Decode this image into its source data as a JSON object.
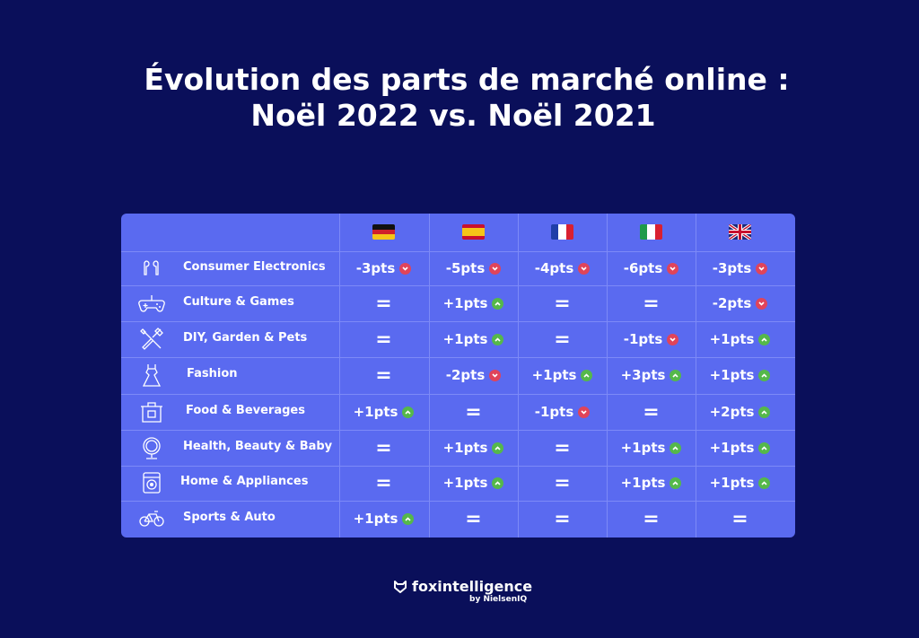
{
  "title": {
    "line1": "Évolution des parts de marché online :",
    "line2": "Noël 2022 vs. Noël 2021"
  },
  "colors": {
    "background": "#0a0f5a",
    "table": "#5a6af0",
    "up": "#55b84a",
    "down": "#e0445a"
  },
  "chart_data": {
    "type": "table",
    "columns": [
      {
        "country": "Germany",
        "flag": "de-flag"
      },
      {
        "country": "Spain",
        "flag": "es-flag"
      },
      {
        "country": "France",
        "flag": "fr-flag"
      },
      {
        "country": "Italy",
        "flag": "it-flag"
      },
      {
        "country": "United Kingdom",
        "flag": "uk-flag"
      }
    ],
    "rows": [
      {
        "category": "Consumer Electronics",
        "icon": "earbuds-icon",
        "cells": [
          {
            "text": "-3pts",
            "trend": "down"
          },
          {
            "text": "-5pts",
            "trend": "down"
          },
          {
            "text": "-4pts",
            "trend": "down"
          },
          {
            "text": "-6pts",
            "trend": "down"
          },
          {
            "text": "-3pts",
            "trend": "down"
          }
        ]
      },
      {
        "category": "Culture & Games",
        "icon": "gamepad-icon",
        "cells": [
          {
            "text": "=",
            "trend": "equal"
          },
          {
            "text": "+1pts",
            "trend": "up"
          },
          {
            "text": "=",
            "trend": "equal"
          },
          {
            "text": "=",
            "trend": "equal"
          },
          {
            "text": "-2pts",
            "trend": "down"
          }
        ]
      },
      {
        "category": "DIY, Garden & Pets",
        "icon": "tools-icon",
        "cells": [
          {
            "text": "=",
            "trend": "equal"
          },
          {
            "text": "+1pts",
            "trend": "up"
          },
          {
            "text": "=",
            "trend": "equal"
          },
          {
            "text": "-1pts",
            "trend": "down"
          },
          {
            "text": "+1pts",
            "trend": "up"
          }
        ]
      },
      {
        "category": "Fashion",
        "icon": "dress-icon",
        "cells": [
          {
            "text": "=",
            "trend": "equal"
          },
          {
            "text": "-2pts",
            "trend": "down"
          },
          {
            "text": "+1pts",
            "trend": "up"
          },
          {
            "text": "+3pts",
            "trend": "up"
          },
          {
            "text": "+1pts",
            "trend": "up"
          }
        ]
      },
      {
        "category": "Food & Beverages",
        "icon": "pot-icon",
        "cells": [
          {
            "text": "+1pts",
            "trend": "up"
          },
          {
            "text": "=",
            "trend": "equal"
          },
          {
            "text": "-1pts",
            "trend": "down"
          },
          {
            "text": "=",
            "trend": "equal"
          },
          {
            "text": "+2pts",
            "trend": "up"
          }
        ]
      },
      {
        "category": "Health, Beauty & Baby",
        "icon": "mirror-icon",
        "cells": [
          {
            "text": "=",
            "trend": "equal"
          },
          {
            "text": "+1pts",
            "trend": "up"
          },
          {
            "text": "=",
            "trend": "equal"
          },
          {
            "text": "+1pts",
            "trend": "up"
          },
          {
            "text": "+1pts",
            "trend": "up"
          }
        ]
      },
      {
        "category": "Home & Appliances",
        "icon": "washing-machine-icon",
        "cells": [
          {
            "text": "=",
            "trend": "equal"
          },
          {
            "text": "+1pts",
            "trend": "up"
          },
          {
            "text": "=",
            "trend": "equal"
          },
          {
            "text": "+1pts",
            "trend": "up"
          },
          {
            "text": "+1pts",
            "trend": "up"
          }
        ]
      },
      {
        "category": "Sports & Auto",
        "icon": "bicycle-icon",
        "cells": [
          {
            "text": "+1pts",
            "trend": "up"
          },
          {
            "text": "=",
            "trend": "equal"
          },
          {
            "text": "=",
            "trend": "equal"
          },
          {
            "text": "=",
            "trend": "equal"
          },
          {
            "text": "=",
            "trend": "equal"
          }
        ]
      }
    ]
  },
  "logo": {
    "name": "foxintelligence",
    "sub": "by NielsenIQ",
    "icon": "fox-icon"
  }
}
